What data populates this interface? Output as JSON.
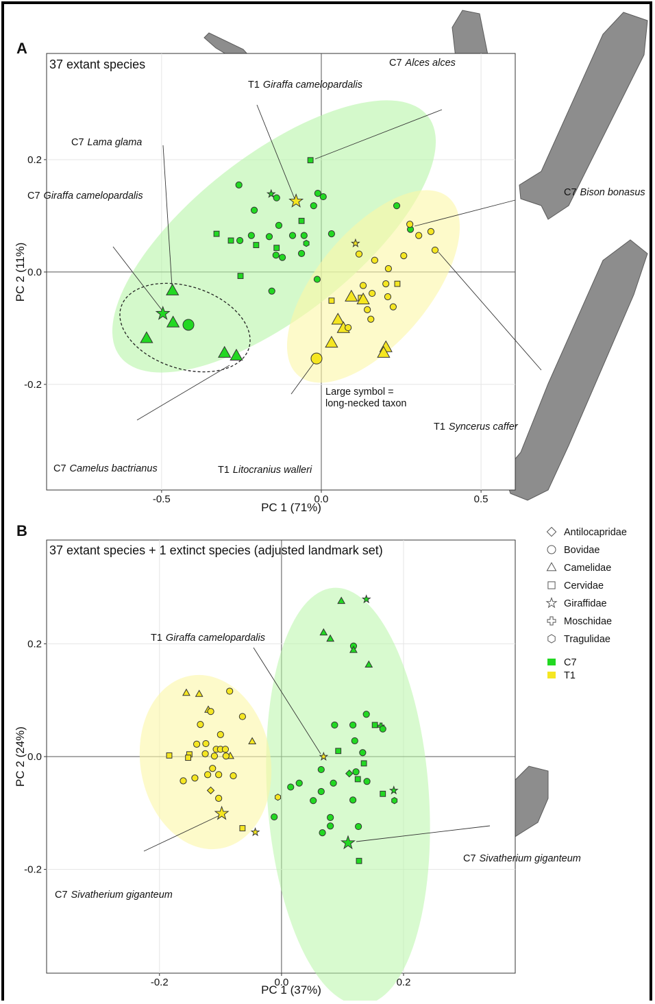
{
  "chart_data": [
    {
      "type": "scatter",
      "panel": "A",
      "subtitle": "37 extant species",
      "xlabel": "PC 1 (71%)",
      "ylabel": "PC 2 (11%)",
      "xlim": [
        -0.86,
        0.607
      ],
      "ylim": [
        -0.388,
        0.389
      ],
      "xticks": [
        -0.5,
        {
          "value": 0,
          "label": "0.0"
        },
        0.5
      ],
      "yticks": [
        -0.2,
        {
          "value": 0,
          "label": "0.0"
        },
        0.2
      ],
      "grid": true,
      "note": [
        "Large symbol =",
        "long-necked taxon"
      ],
      "annotations": [
        {
          "group": "T1",
          "species": "Giraffa camelopardalis"
        },
        {
          "group": "C7",
          "species": "Alces alces"
        },
        {
          "group": "C7",
          "species": "Lama glama"
        },
        {
          "group": "C7",
          "species": "Giraffa camelopardalis"
        },
        {
          "group": "C7",
          "species": "Bison bonasus"
        },
        {
          "group": "T1",
          "species": "Syncerus caffer"
        },
        {
          "group": "C7",
          "species": "Camelus bactrianus"
        },
        {
          "group": "T1",
          "species": "Litocranius walleri"
        }
      ],
      "series": [
        {
          "name": "C7",
          "color": "#22d822",
          "x": [
            -0.034,
            -0.258,
            -0.157,
            -0.14,
            -0.21,
            -0.011,
            0.006,
            -0.024,
            -0.062,
            -0.133,
            -0.328,
            -0.283,
            -0.255,
            -0.219,
            -0.204,
            -0.163,
            -0.14,
            -0.09,
            -0.054,
            -0.142,
            -0.122,
            -0.047,
            -0.062,
            0.032,
            0.236,
            -0.253,
            -0.013,
            -0.155,
            -0.466,
            -0.496,
            -0.464,
            -0.416,
            -0.547,
            -0.303,
            -0.266,
            0.279
          ],
          "y": [
            0.199,
            0.155,
            0.139,
            0.132,
            0.11,
            0.14,
            0.134,
            0.118,
            0.091,
            0.083,
            0.068,
            0.056,
            0.056,
            0.065,
            0.048,
            0.063,
            0.043,
            0.065,
            0.065,
            0.03,
            0.026,
            0.051,
            0.033,
            0.068,
            0.118,
            -0.007,
            -0.013,
            -0.034,
            -0.033,
            -0.074,
            -0.09,
            -0.094,
            -0.118,
            -0.144,
            -0.149,
            0.076
          ],
          "family": [
            "Cervidae",
            "Bovidae",
            "Giraffidae",
            "Bovidae",
            "Bovidae",
            "Bovidae",
            "Bovidae",
            "Bovidae",
            "Cervidae",
            "Bovidae",
            "Cervidae",
            "Cervidae",
            "Bovidae",
            "Bovidae",
            "Cervidae",
            "Bovidae",
            "Cervidae",
            "Bovidae",
            "Bovidae",
            "Bovidae",
            "Bovidae",
            "Tragulidae",
            "Bovidae",
            "Bovidae",
            "Bovidae",
            "Cervidae",
            "Bovidae",
            "Bovidae",
            "Camelidae",
            "Giraffidae",
            "Camelidae",
            "Bovidae",
            "Camelidae",
            "Camelidae",
            "Camelidae",
            "Bovidae"
          ],
          "large": [
            false,
            false,
            false,
            false,
            false,
            false,
            false,
            false,
            false,
            false,
            false,
            false,
            false,
            false,
            false,
            false,
            false,
            false,
            false,
            false,
            false,
            false,
            false,
            false,
            false,
            false,
            false,
            false,
            true,
            true,
            true,
            true,
            true,
            true,
            true,
            false
          ]
        },
        {
          "name": "T1",
          "color": "#f5e622",
          "x": [
            -0.079,
            0.107,
            0.277,
            0.305,
            0.343,
            0.356,
            0.258,
            0.118,
            0.167,
            0.21,
            0.238,
            0.032,
            0.202,
            0.131,
            0.159,
            0.208,
            0.225,
            0.144,
            0.155,
            0.124,
            0.094,
            0.131,
            0.052,
            0.069,
            0.032,
            0.202,
            0.195,
            -0.015,
            0.084
          ],
          "y": [
            0.126,
            0.051,
            0.085,
            0.065,
            0.072,
            0.039,
            0.029,
            0.032,
            0.021,
            0.006,
            -0.021,
            -0.051,
            -0.021,
            -0.024,
            -0.038,
            -0.044,
            -0.062,
            -0.067,
            -0.084,
            -0.046,
            -0.044,
            -0.049,
            -0.085,
            -0.1,
            -0.126,
            -0.134,
            -0.144,
            -0.154,
            -0.099
          ],
          "family": [
            "Giraffidae",
            "Giraffidae",
            "Bovidae",
            "Bovidae",
            "Bovidae",
            "Bovidae",
            "Bovidae",
            "Bovidae",
            "Bovidae",
            "Bovidae",
            "Cervidae",
            "Cervidae",
            "Bovidae",
            "Bovidae",
            "Bovidae",
            "Bovidae",
            "Bovidae",
            "Bovidae",
            "Bovidae",
            "Cervidae",
            "Camelidae",
            "Camelidae",
            "Camelidae",
            "Camelidae",
            "Camelidae",
            "Camelidae",
            "Camelidae",
            "Bovidae",
            "Bovidae"
          ],
          "large": [
            true,
            false,
            false,
            false,
            false,
            false,
            false,
            false,
            false,
            false,
            false,
            false,
            false,
            false,
            false,
            false,
            false,
            false,
            false,
            false,
            true,
            true,
            true,
            true,
            true,
            true,
            true,
            true,
            false
          ]
        }
      ]
    },
    {
      "type": "scatter",
      "panel": "B",
      "subtitle": "37 extant species + 1 extinct species (adjusted landmark set)",
      "xlabel": "PC 1 (37%)",
      "ylabel": "PC 2 (24%)",
      "xlim": [
        -0.385,
        0.383
      ],
      "ylim": [
        -0.384,
        0.384
      ],
      "xticks": [
        -0.2,
        {
          "value": 0,
          "label": "0.0"
        },
        0.2
      ],
      "yticks": [
        -0.2,
        {
          "value": 0,
          "label": "0.0"
        },
        0.2
      ],
      "grid": true,
      "legend": "outside-right",
      "shape_legend": [
        "Antilocapridae",
        "Bovidae",
        "Camelidae",
        "Cervidae",
        "Giraffidae",
        "Moschidae",
        "Tragulidae"
      ],
      "annotations": [
        {
          "group": "T1",
          "species": "Giraffa camelopardalis"
        },
        {
          "group": "C7",
          "species": "Sivatherium giganteum"
        },
        {
          "group": "C7",
          "species": "Sivatherium giganteum"
        }
      ],
      "series": [
        {
          "name": "C7",
          "color": "#22d822",
          "x": [
            0.098,
            0.139,
            0.069,
            0.08,
            0.118,
            0.118,
            0.143,
            0.139,
            0.087,
            0.117,
            0.153,
            0.163,
            0.166,
            0.093,
            0.12,
            0.133,
            0.135,
            0.065,
            0.111,
            0.085,
            0.029,
            0.015,
            0.122,
            0.125,
            0.14,
            0.166,
            0.184,
            0.185,
            0.052,
            0.065,
            0.117,
            0.08,
            0.08,
            0.126,
            0.067,
            0.109,
            0.127,
            -0.012
          ],
          "y": [
            0.276,
            0.279,
            0.22,
            0.209,
            0.196,
            0.189,
            0.163,
            0.075,
            0.056,
            0.056,
            0.056,
            0.054,
            0.049,
            0.01,
            0.028,
            0.007,
            -0.012,
            -0.023,
            -0.03,
            -0.047,
            -0.047,
            -0.054,
            -0.027,
            -0.04,
            -0.044,
            -0.066,
            -0.06,
            -0.078,
            -0.078,
            -0.062,
            -0.077,
            -0.108,
            -0.123,
            -0.124,
            -0.135,
            -0.153,
            -0.185,
            -0.107
          ],
          "family": [
            "Camelidae",
            "Giraffidae",
            "Camelidae",
            "Camelidae",
            "Bovidae",
            "Camelidae",
            "Camelidae",
            "Bovidae",
            "Bovidae",
            "Bovidae",
            "Cervidae",
            "Moschidae",
            "Bovidae",
            "Cervidae",
            "Bovidae",
            "Bovidae",
            "Cervidae",
            "Bovidae",
            "Antilocapridae",
            "Bovidae",
            "Bovidae",
            "Bovidae",
            "Bovidae",
            "Cervidae",
            "Bovidae",
            "Cervidae",
            "Giraffidae",
            "Tragulidae",
            "Bovidae",
            "Bovidae",
            "Bovidae",
            "Bovidae",
            "Bovidae",
            "Bovidae",
            "Bovidae",
            "Giraffidae",
            "Cervidae",
            "Bovidae"
          ],
          "large": [
            false,
            false,
            false,
            false,
            false,
            false,
            false,
            false,
            false,
            false,
            false,
            false,
            false,
            false,
            false,
            false,
            false,
            false,
            false,
            false,
            false,
            false,
            false,
            false,
            false,
            false,
            false,
            false,
            false,
            false,
            false,
            false,
            false,
            false,
            false,
            true,
            false,
            false
          ]
        },
        {
          "name": "T1",
          "color": "#f5e622",
          "x": [
            -0.156,
            -0.135,
            -0.085,
            -0.12,
            -0.116,
            -0.064,
            -0.133,
            -0.1,
            -0.048,
            -0.139,
            -0.124,
            -0.184,
            -0.151,
            -0.153,
            -0.125,
            -0.107,
            -0.1,
            -0.092,
            -0.11,
            -0.084,
            -0.091,
            -0.113,
            -0.103,
            -0.079,
            -0.121,
            -0.142,
            -0.161,
            -0.116,
            -0.103,
            -0.006,
            -0.098,
            -0.064,
            -0.043,
            0.069
          ],
          "y": [
            0.113,
            0.111,
            0.116,
            0.083,
            0.08,
            0.071,
            0.057,
            0.039,
            0.027,
            0.022,
            0.023,
            0.002,
            0.004,
            -0.002,
            0.005,
            0.013,
            0.013,
            0.013,
            0.001,
            0.001,
            0.001,
            -0.021,
            -0.032,
            -0.034,
            -0.032,
            -0.038,
            -0.043,
            -0.06,
            -0.074,
            -0.072,
            -0.101,
            -0.127,
            -0.134,
            0.0
          ],
          "family": [
            "Camelidae",
            "Camelidae",
            "Bovidae",
            "Camelidae",
            "Bovidae",
            "Bovidae",
            "Bovidae",
            "Bovidae",
            "Camelidae",
            "Bovidae",
            "Bovidae",
            "Cervidae",
            "Cervidae",
            "Cervidae",
            "Bovidae",
            "Bovidae",
            "Bovidae",
            "Bovidae",
            "Bovidae",
            "Camelidae",
            "Bovidae",
            "Bovidae",
            "Bovidae",
            "Bovidae",
            "Bovidae",
            "Bovidae",
            "Bovidae",
            "Antilocapridae",
            "Bovidae",
            "Tragulidae",
            "Giraffidae",
            "Cervidae",
            "Giraffidae",
            "Giraffidae"
          ],
          "large": [
            false,
            false,
            false,
            false,
            false,
            false,
            false,
            false,
            false,
            false,
            false,
            false,
            false,
            false,
            false,
            false,
            false,
            false,
            false,
            false,
            false,
            false,
            false,
            false,
            false,
            false,
            false,
            false,
            false,
            false,
            true,
            false,
            false,
            false
          ]
        }
      ]
    }
  ]
}
